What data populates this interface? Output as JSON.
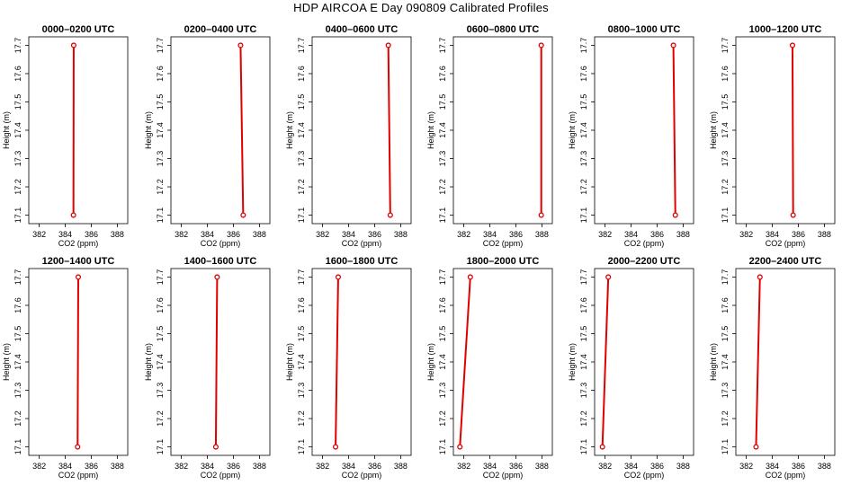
{
  "title": "HDP AIRCOA E  Day 090809  Calibrated Profiles",
  "colors": {
    "profile": "#e00000",
    "axis": "#000000"
  },
  "axes": {
    "xlabel": "CO2 (ppm)",
    "ylabel": "Height (m)",
    "xlim": [
      381.2,
      388.8
    ],
    "ylim": [
      17.07,
      17.73
    ],
    "xticks": [
      382,
      384,
      386,
      388
    ],
    "yticks": [
      17.1,
      17.2,
      17.3,
      17.4,
      17.5,
      17.6,
      17.7
    ],
    "xtick_labels": [
      "382",
      "384",
      "386",
      "388"
    ],
    "ytick_labels": [
      "17.1",
      "17.2",
      "17.3",
      "17.4",
      "17.5",
      "17.6",
      "17.7"
    ]
  },
  "chart_data": [
    {
      "type": "line",
      "title": "0000–0200 UTC",
      "points": [
        {
          "x": 384.65,
          "y": 17.7
        },
        {
          "x": 384.63,
          "y": 17.1
        }
      ]
    },
    {
      "type": "line",
      "title": "0200–0400 UTC",
      "points": [
        {
          "x": 386.55,
          "y": 17.7
        },
        {
          "x": 386.75,
          "y": 17.1
        }
      ]
    },
    {
      "type": "line",
      "title": "0400–0600 UTC",
      "points": [
        {
          "x": 387.05,
          "y": 17.7
        },
        {
          "x": 387.2,
          "y": 17.1
        }
      ]
    },
    {
      "type": "line",
      "title": "0600–0800 UTC",
      "points": [
        {
          "x": 387.95,
          "y": 17.7
        },
        {
          "x": 387.95,
          "y": 17.1
        }
      ]
    },
    {
      "type": "line",
      "title": "0800–1000 UTC",
      "points": [
        {
          "x": 387.25,
          "y": 17.7
        },
        {
          "x": 387.4,
          "y": 17.1
        }
      ]
    },
    {
      "type": "line",
      "title": "1000–1200 UTC",
      "points": [
        {
          "x": 385.55,
          "y": 17.7
        },
        {
          "x": 385.6,
          "y": 17.1
        }
      ]
    },
    {
      "type": "line",
      "title": "1200–1400 UTC",
      "points": [
        {
          "x": 385.0,
          "y": 17.7
        },
        {
          "x": 384.95,
          "y": 17.1
        }
      ]
    },
    {
      "type": "line",
      "title": "1400–1600 UTC",
      "points": [
        {
          "x": 384.75,
          "y": 17.7
        },
        {
          "x": 384.65,
          "y": 17.1
        }
      ]
    },
    {
      "type": "line",
      "title": "1600–1800 UTC",
      "points": [
        {
          "x": 383.2,
          "y": 17.7
        },
        {
          "x": 383.0,
          "y": 17.1
        }
      ]
    },
    {
      "type": "line",
      "title": "1800–2000 UTC",
      "points": [
        {
          "x": 382.5,
          "y": 17.7
        },
        {
          "x": 381.7,
          "y": 17.1
        }
      ]
    },
    {
      "type": "line",
      "title": "2000–2200 UTC",
      "points": [
        {
          "x": 382.25,
          "y": 17.7
        },
        {
          "x": 381.8,
          "y": 17.1
        }
      ]
    },
    {
      "type": "line",
      "title": "2200–2400 UTC",
      "points": [
        {
          "x": 383.05,
          "y": 17.7
        },
        {
          "x": 382.75,
          "y": 17.1
        }
      ]
    }
  ]
}
